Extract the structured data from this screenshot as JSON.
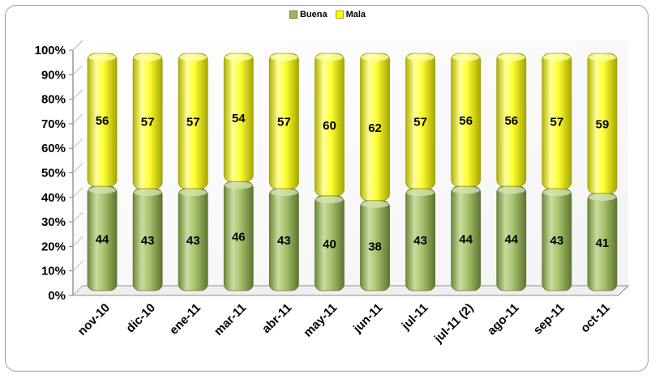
{
  "chart_data": {
    "type": "bar",
    "stacked": true,
    "percent_stacked": true,
    "categories": [
      "nov-10",
      "dic-10",
      "ene-11",
      "mar-11",
      "abr-11",
      "may-11",
      "jun-11",
      "jul-11",
      "jul-11 (2)",
      "ago-11",
      "sep-11",
      "oct-11"
    ],
    "series": [
      {
        "name": "Buena",
        "values": [
          44,
          43,
          43,
          46,
          43,
          40,
          38,
          43,
          44,
          44,
          43,
          41
        ],
        "color": "#9bbb59"
      },
      {
        "name": "Mala",
        "values": [
          56,
          57,
          57,
          54,
          57,
          60,
          62,
          57,
          56,
          56,
          57,
          59
        ],
        "color": "#ffff00"
      }
    ],
    "y_ticks": [
      "0%",
      "10%",
      "20%",
      "30%",
      "40%",
      "50%",
      "60%",
      "70%",
      "80%",
      "90%",
      "100%"
    ],
    "ylim": [
      0,
      100
    ],
    "legend_position": "top-center",
    "grid": false,
    "bar_shape": "cylinder-3d",
    "data_labels": true
  }
}
